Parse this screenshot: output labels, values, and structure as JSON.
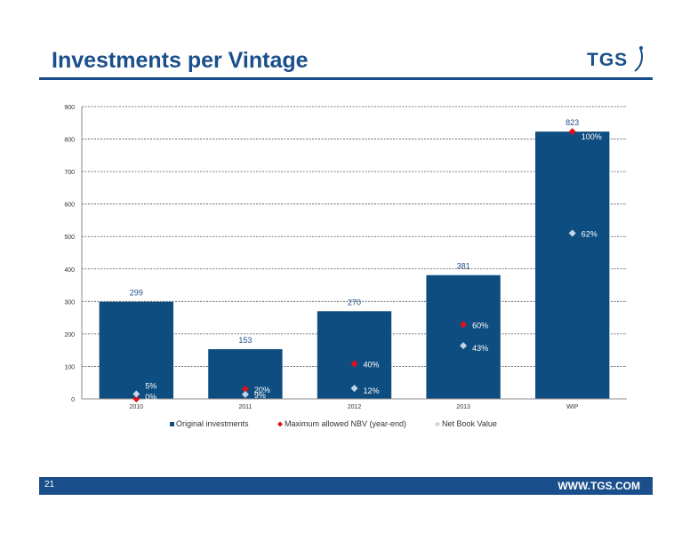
{
  "slide": {
    "title": "Investments per Vintage",
    "logo_text": "TGS",
    "page_number": "21",
    "website": "WWW.TGS.COM"
  },
  "colors": {
    "brand": "#1a4f8b",
    "bar": "#0e4d80",
    "max_nbv": "#e0101c",
    "nbv": "#c4d5e8"
  },
  "chart_data": {
    "type": "bar",
    "title": "",
    "xlabel": "",
    "ylabel": "",
    "categories": [
      "2010",
      "2011",
      "2012",
      "2013",
      "WIP"
    ],
    "ylim": [
      0,
      900
    ],
    "yticks": [
      0,
      100,
      200,
      300,
      400,
      500,
      600,
      700,
      800,
      900
    ],
    "grid": true,
    "legend_position": "bottom",
    "series": [
      {
        "name": "Original investments",
        "kind": "bar",
        "values": [
          299,
          153,
          270,
          381,
          823
        ],
        "labels": [
          "299",
          "153",
          "270",
          "381",
          "823"
        ]
      },
      {
        "name": "Maximum allowed NBV (year-end)",
        "kind": "marker",
        "marker": "diamond",
        "values": [
          0,
          30.6,
          108,
          228.6,
          823
        ],
        "labels": [
          "0%",
          "20%",
          "40%",
          "60%",
          "100%"
        ]
      },
      {
        "name": "Net Book Value",
        "kind": "marker",
        "marker": "diamond",
        "values": [
          15,
          13.8,
          32.4,
          163.8,
          510.3
        ],
        "labels": [
          "5%",
          "9%",
          "12%",
          "43%",
          "62%"
        ]
      }
    ]
  }
}
